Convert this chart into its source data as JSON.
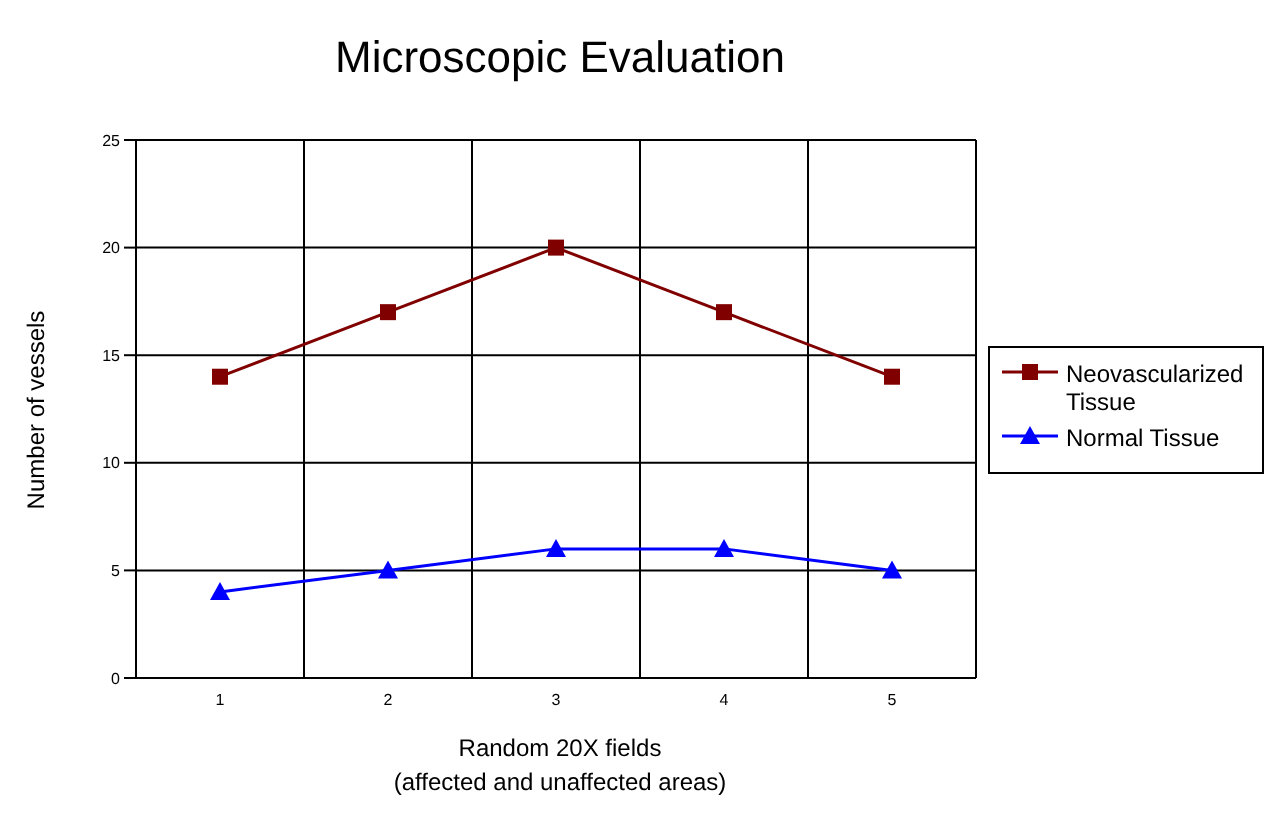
{
  "chart_data": {
    "type": "line",
    "title": "Microscopic Evaluation",
    "xlabel": "Random 20X fields\n(affected and unaffected areas)",
    "ylabel": "Number of vessels",
    "categories": [
      "1",
      "2",
      "3",
      "4",
      "5"
    ],
    "series": [
      {
        "name": "Neovascularized Tissue",
        "color": "#800000",
        "marker": "square",
        "values": [
          14,
          17,
          20,
          17,
          14
        ]
      },
      {
        "name": "Normal Tissue",
        "color": "#0000ff",
        "marker": "triangle",
        "values": [
          4,
          5,
          6,
          6,
          5
        ]
      }
    ],
    "ylim": [
      0,
      25
    ],
    "yticks": [
      0,
      5,
      10,
      15,
      20,
      25
    ],
    "grid": true,
    "legend": "right"
  }
}
